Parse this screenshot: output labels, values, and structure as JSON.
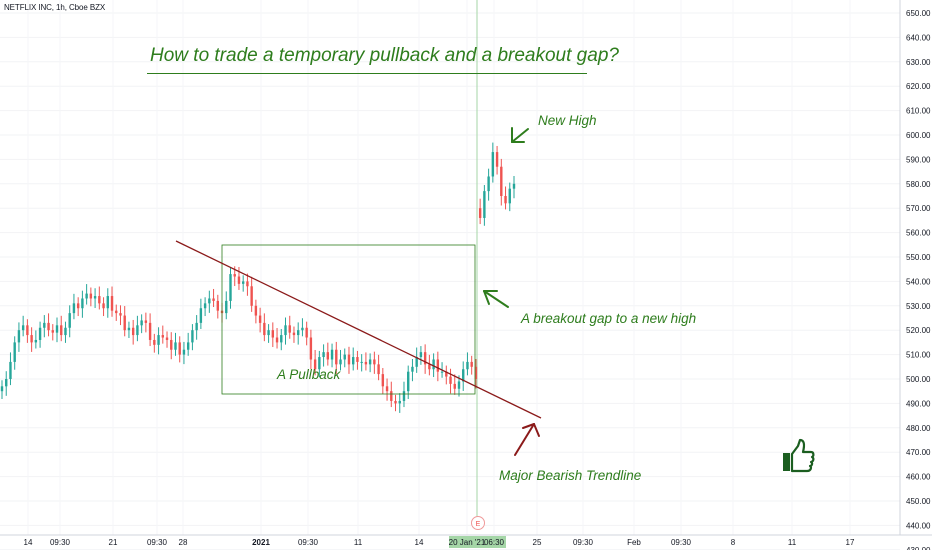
{
  "symbol_label": "NETFLIX INC, 1h, Cboe BZX",
  "chart_data": {
    "type": "candlestick",
    "title": "How to trade a temporary pullback and a breakout gap?",
    "ylim": [
      425,
      655
    ],
    "y_ticks": [
      "650.00",
      "640.00",
      "630.00",
      "620.00",
      "610.00",
      "600.00",
      "590.00",
      "580.00",
      "570.00",
      "560.00",
      "550.00",
      "540.00",
      "530.00",
      "520.00",
      "510.00",
      "500.00",
      "490.00",
      "480.00",
      "470.00",
      "460.00",
      "450.00",
      "440.00",
      "430.00"
    ],
    "y_tick_values": [
      650,
      640,
      630,
      620,
      610,
      600,
      590,
      580,
      570,
      560,
      550,
      540,
      530,
      520,
      510,
      500,
      490,
      480,
      470,
      460,
      450,
      440,
      430
    ],
    "x_ticks": [
      "14",
      "09:30",
      "21",
      "09:30",
      "28",
      "2021",
      "09:30",
      "11",
      "14",
      "20 Jan '21",
      "06:30",
      "25",
      "09:30",
      "Feb",
      "09:30",
      "8",
      "11",
      "17"
    ],
    "x_highlight": "20 Jan '21",
    "event_marker": "E",
    "colors": {
      "up": "#26a69a",
      "down": "#ef5350",
      "annotation_green": "#2e7d1d",
      "trendline": "#8b1a1a",
      "crosshair": "#a5d6a7"
    },
    "closes": [
      497,
      500,
      507,
      515,
      520,
      522,
      518,
      515,
      516,
      521,
      523,
      520,
      519,
      522,
      518,
      521,
      527,
      531,
      529,
      533,
      535,
      533,
      534,
      531,
      529,
      534,
      528,
      527,
      526,
      520,
      521,
      518,
      522,
      524,
      523,
      516,
      514,
      518,
      517,
      516,
      512,
      515,
      510,
      512,
      515,
      520,
      523,
      529,
      531,
      533,
      532,
      528,
      527,
      532,
      543,
      542,
      539,
      540,
      538,
      530,
      526,
      523,
      518,
      520,
      517,
      515,
      518,
      522,
      519,
      518,
      520,
      521,
      517,
      508,
      504,
      509,
      511,
      508,
      512,
      506,
      508,
      510,
      506,
      509,
      507,
      507,
      506,
      508,
      506,
      502,
      497,
      495,
      491,
      490,
      491,
      495,
      503,
      505,
      509,
      511,
      506,
      504,
      508,
      503,
      503,
      501,
      498,
      496,
      499,
      504,
      507,
      505,
      500,
      566,
      577,
      583,
      593,
      587,
      575,
      572,
      578,
      580
    ],
    "annotations": [
      {
        "text": "New High",
        "color": "#2e7d1d"
      },
      {
        "text": "A breakout gap to a new high",
        "color": "#2e7d1d"
      },
      {
        "text": "A Pullback",
        "color": "#2e7d1d"
      },
      {
        "text": "Major Bearish Trendline",
        "color": "#2e7d1d"
      }
    ],
    "pullback_box": {
      "from_bar": 68,
      "to_bar": 146,
      "low": 488,
      "high": 550
    },
    "trendline": {
      "start_price": 548,
      "end_price": 476
    },
    "thumbs_up_icon": "thumbs-up-icon"
  }
}
